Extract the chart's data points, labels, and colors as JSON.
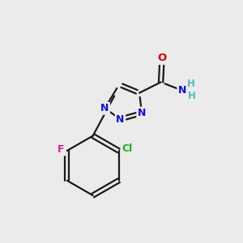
{
  "bg_color": "#ebebeb",
  "bond_color": "#1a1a1a",
  "N_color": "#1111cc",
  "O_color": "#cc0000",
  "F_color": "#cc2299",
  "Cl_color": "#22aa22",
  "H_color": "#55bbbb",
  "line_width": 1.6,
  "figsize": [
    3.0,
    3.0
  ],
  "dpi": 100,
  "xlim": [
    0,
    10
  ],
  "ylim": [
    0,
    10
  ]
}
